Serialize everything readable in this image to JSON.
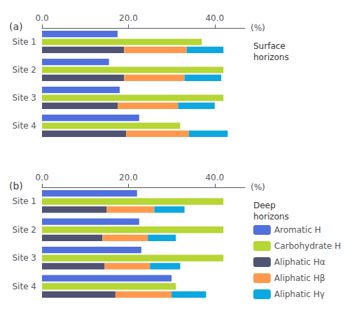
{
  "chart_data": [
    {
      "type": "bar",
      "orientation": "horizontal",
      "title": "(a)",
      "annotation": "Surface\nhorizons",
      "xlabel": "(%)",
      "categories": [
        "Site 1",
        "Site 2",
        "Site 3",
        "Site 4"
      ],
      "series": [
        {
          "name": "Aromatic H",
          "values": [
            17.5,
            15.5,
            18.0,
            22.5
          ]
        },
        {
          "name": "Carbohydrate H",
          "values": [
            37.0,
            42.0,
            42.0,
            32.0
          ]
        },
        {
          "name": "Aliphatic Hα",
          "stacked": true,
          "values": [
            19.0,
            19.0,
            17.5,
            19.5
          ]
        },
        {
          "name": "Aliphatic Hβ",
          "stacked": true,
          "values": [
            14.5,
            14.0,
            14.0,
            14.5
          ]
        },
        {
          "name": "Aliphatic Hγ",
          "stacked": true,
          "values": [
            8.5,
            8.5,
            8.5,
            9.0
          ]
        }
      ],
      "xlim": [
        0,
        47
      ],
      "xticks": [
        {
          "value": 0,
          "label": "0.0"
        },
        {
          "value": 20,
          "label": "20.0"
        },
        {
          "value": 40,
          "label": "40.0"
        }
      ],
      "grid": false
    },
    {
      "type": "bar",
      "orientation": "horizontal",
      "title": "(b)",
      "annotation": "Deep\nhorizons",
      "xlabel": "(%)",
      "categories": [
        "Site 1",
        "Site 2",
        "Site 3",
        "Site 4"
      ],
      "series": [
        {
          "name": "Aromatic H",
          "values": [
            22.0,
            22.5,
            23.0,
            30.0
          ]
        },
        {
          "name": "Carbohydrate H",
          "values": [
            42.0,
            42.0,
            42.0,
            31.0
          ]
        },
        {
          "name": "Aliphatic Hα",
          "stacked": true,
          "values": [
            15.0,
            14.0,
            14.5,
            17.0
          ]
        },
        {
          "name": "Aliphatic Hβ",
          "stacked": true,
          "values": [
            11.0,
            10.5,
            10.5,
            13.0
          ]
        },
        {
          "name": "Aliphatic Hγ",
          "stacked": true,
          "values": [
            7.0,
            6.5,
            7.0,
            8.0
          ]
        }
      ],
      "xlim": [
        0,
        47
      ],
      "xticks": [
        {
          "value": 0,
          "label": "0.0"
        },
        {
          "value": 20,
          "label": "20.0"
        },
        {
          "value": 40,
          "label": "40.0"
        }
      ],
      "grid": false,
      "legend": "lower right"
    }
  ]
}
